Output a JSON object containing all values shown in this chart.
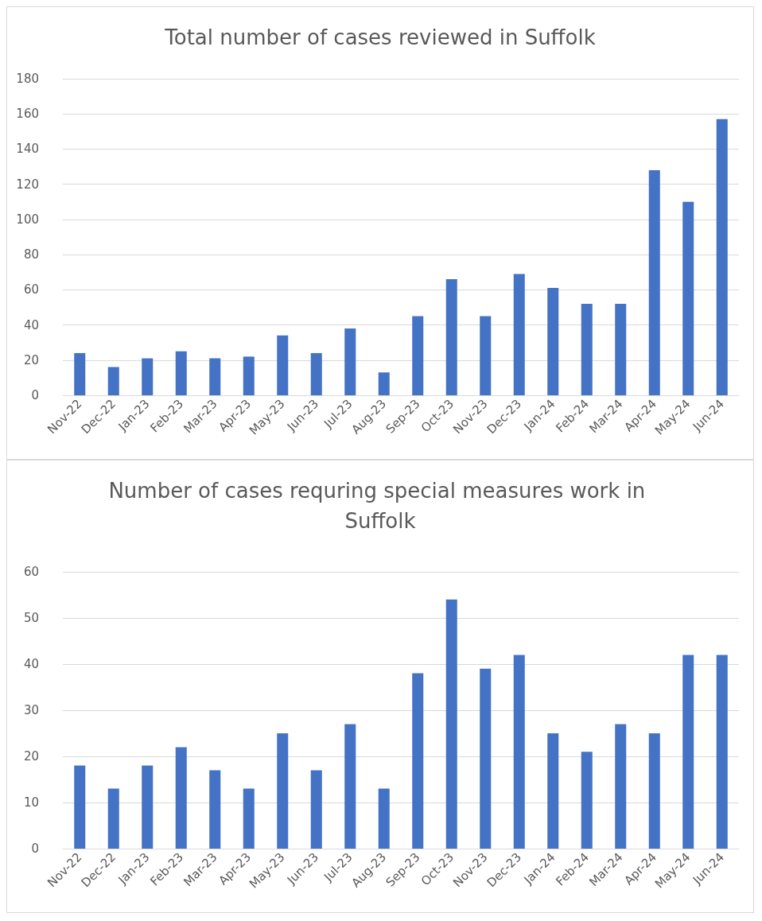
{
  "chart_data": [
    {
      "type": "bar",
      "title": "Total number of cases reviewed in Suffolk",
      "categories": [
        "Nov-22",
        "Dec-22",
        "Jan-23",
        "Feb-23",
        "Mar-23",
        "Apr-23",
        "May-23",
        "Jun-23",
        "Jul-23",
        "Aug-23",
        "Sep-23",
        "Oct-23",
        "Nov-23",
        "Dec-23",
        "Jan-24",
        "Feb-24",
        "Mar-24",
        "Apr-24",
        "May-24",
        "Jun-24"
      ],
      "values": [
        24,
        16,
        21,
        25,
        21,
        22,
        34,
        24,
        38,
        13,
        45,
        66,
        45,
        69,
        61,
        52,
        52,
        128,
        110,
        157
      ],
      "color": "#4472c4",
      "ylim": [
        0,
        180
      ],
      "yticks": [
        0,
        20,
        40,
        60,
        80,
        100,
        120,
        140,
        160,
        180
      ],
      "grid": "y"
    },
    {
      "type": "bar",
      "title": "Number of cases requring special measures work in Suffolk",
      "categories": [
        "Nov-22",
        "Dec-22",
        "Jan-23",
        "Feb-23",
        "Mar-23",
        "Apr-23",
        "May-23",
        "Jun-23",
        "Jul-23",
        "Aug-23",
        "Sep-23",
        "Oct-23",
        "Nov-23",
        "Dec-23",
        "Jan-24",
        "Feb-24",
        "Mar-24",
        "Apr-24",
        "May-24",
        "Jun-24"
      ],
      "values": [
        18,
        13,
        18,
        22,
        17,
        13,
        25,
        17,
        27,
        13,
        38,
        54,
        39,
        42,
        25,
        21,
        27,
        25,
        42,
        42
      ],
      "color": "#4472c4",
      "ylim": [
        0,
        60
      ],
      "yticks": [
        0,
        10,
        20,
        30,
        40,
        50,
        60
      ],
      "grid": "y"
    }
  ]
}
